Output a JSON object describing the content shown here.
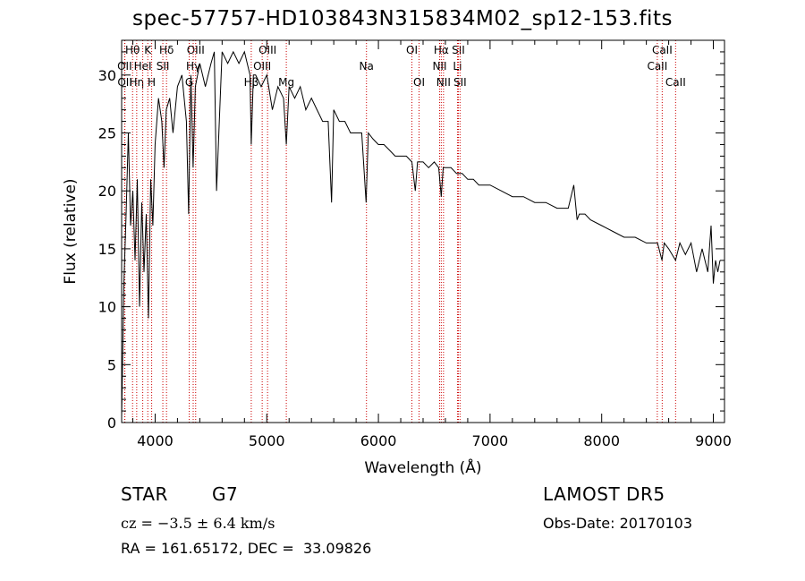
{
  "title": "spec-57757-HD103843N315834M02_sp12-153.fits",
  "footer": {
    "object_class": "STAR",
    "subclass": "G7",
    "survey": "LAMOST DR5",
    "cz": "cz = −3.5 ± 6.4 km/s",
    "obs_date": "Obs-Date: 20170103",
    "coords": "RA = 161.65172, DEC =  33.09826"
  },
  "chart_data": {
    "type": "line",
    "title": "spec-57757-HD103843N315834M02_sp12-153.fits",
    "xlabel": "Wavelength (Å)",
    "ylabel": "Flux (relative)",
    "xlim": [
      3700,
      9100
    ],
    "ylim": [
      0,
      33
    ],
    "xticks": [
      4000,
      5000,
      6000,
      7000,
      8000,
      9000
    ],
    "yticks": [
      0,
      5,
      10,
      15,
      20,
      25,
      30
    ],
    "grid": false,
    "line_color": "#000000",
    "marker_color": "#cc0000",
    "series": [
      {
        "x": [
          3700,
          3720,
          3740,
          3760,
          3780,
          3800,
          3820,
          3840,
          3860,
          3880,
          3900,
          3920,
          3940,
          3960,
          3980,
          4000,
          4030,
          4060,
          4080,
          4100,
          4130,
          4160,
          4200,
          4240,
          4280,
          4300,
          4320,
          4340,
          4360,
          4400,
          4450,
          4500,
          4530,
          4550,
          4600,
          4650,
          4700,
          4750,
          4800,
          4850,
          4861,
          4880,
          4900,
          4950,
          5000,
          5050,
          5100,
          5150,
          5175,
          5200,
          5250,
          5300,
          5350,
          5400,
          5450,
          5500,
          5550,
          5580,
          5600,
          5650,
          5700,
          5750,
          5800,
          5850,
          5890,
          5910,
          5950,
          6000,
          6050,
          6100,
          6150,
          6200,
          6250,
          6300,
          6330,
          6350,
          6400,
          6450,
          6500,
          6540,
          6563,
          6580,
          6600,
          6650,
          6700,
          6750,
          6800,
          6850,
          6900,
          6950,
          7000,
          7100,
          7200,
          7300,
          7400,
          7500,
          7600,
          7700,
          7750,
          7780,
          7800,
          7850,
          7900,
          8000,
          8100,
          8200,
          8300,
          8400,
          8450,
          8500,
          8540,
          8560,
          8600,
          8662,
          8700,
          8750,
          8800,
          8850,
          8900,
          8950,
          8980,
          9000,
          9020,
          9040,
          9060
        ],
        "y": [
          0.5,
          12,
          18,
          25,
          17,
          20,
          14,
          21,
          10,
          19,
          13,
          18,
          9,
          21,
          17,
          24,
          28,
          26,
          22,
          27,
          28,
          25,
          29,
          30,
          26,
          18,
          30,
          22,
          29,
          31,
          29,
          31,
          32,
          20,
          32,
          31,
          32,
          31,
          32,
          30,
          24,
          30,
          30,
          29,
          30,
          27,
          29,
          28,
          24,
          29,
          28,
          29,
          27,
          28,
          27,
          26,
          26,
          19,
          27,
          26,
          26,
          25,
          25,
          25,
          19,
          25,
          24.5,
          24,
          24,
          23.5,
          23,
          23,
          23,
          22.5,
          20,
          22.5,
          22.5,
          22,
          22.5,
          22,
          19.5,
          22,
          22,
          22,
          21.5,
          21.5,
          21,
          21,
          20.5,
          20.5,
          20.5,
          20,
          19.5,
          19.5,
          19,
          19,
          18.5,
          18.5,
          20.5,
          17.5,
          18,
          18,
          17.5,
          17,
          16.5,
          16,
          16,
          15.5,
          15.5,
          15.5,
          14,
          15.5,
          15,
          14,
          15.5,
          14.5,
          15.5,
          13,
          15,
          13,
          17,
          12,
          14,
          13,
          14
        ]
      }
    ],
    "lines": [
      {
        "label": "Hθ",
        "x": 3798,
        "row": 0
      },
      {
        "label": "OII",
        "x": 3727,
        "row": 1
      },
      {
        "label": "OII",
        "x": 3729,
        "row": 2
      },
      {
        "label": "Hη",
        "x": 3835,
        "row": 2
      },
      {
        "label": "K",
        "x": 3934,
        "row": 0
      },
      {
        "label": "HeI",
        "x": 3889,
        "row": 1
      },
      {
        "label": "H",
        "x": 3969,
        "row": 2
      },
      {
        "label": "Hδ",
        "x": 4102,
        "row": 0
      },
      {
        "label": "SII",
        "x": 4069,
        "row": 1
      },
      {
        "label": "OIII",
        "x": 4363,
        "row": 0
      },
      {
        "label": "Hγ",
        "x": 4341,
        "row": 1
      },
      {
        "label": "G",
        "x": 4305,
        "row": 2
      },
      {
        "label": "OIII",
        "x": 5007,
        "row": 0
      },
      {
        "label": "OIII",
        "x": 4959,
        "row": 1
      },
      {
        "label": "Hβ",
        "x": 4861,
        "row": 2
      },
      {
        "label": "Mg",
        "x": 5175,
        "row": 2
      },
      {
        "label": "Na",
        "x": 5893,
        "row": 1
      },
      {
        "label": "OI",
        "x": 6300,
        "row": 0
      },
      {
        "label": "OI",
        "x": 6364,
        "row": 2
      },
      {
        "label": "Hα",
        "x": 6563,
        "row": 0
      },
      {
        "label": "NII",
        "x": 6548,
        "row": 1
      },
      {
        "label": "NII",
        "x": 6583,
        "row": 2
      },
      {
        "label": "SII",
        "x": 6716,
        "row": 0
      },
      {
        "label": "Li",
        "x": 6708,
        "row": 1
      },
      {
        "label": "SII",
        "x": 6731,
        "row": 2
      },
      {
        "label": "CaII",
        "x": 8542,
        "row": 0
      },
      {
        "label": "CaII",
        "x": 8498,
        "row": 1
      },
      {
        "label": "CaII",
        "x": 8662,
        "row": 2
      }
    ]
  }
}
